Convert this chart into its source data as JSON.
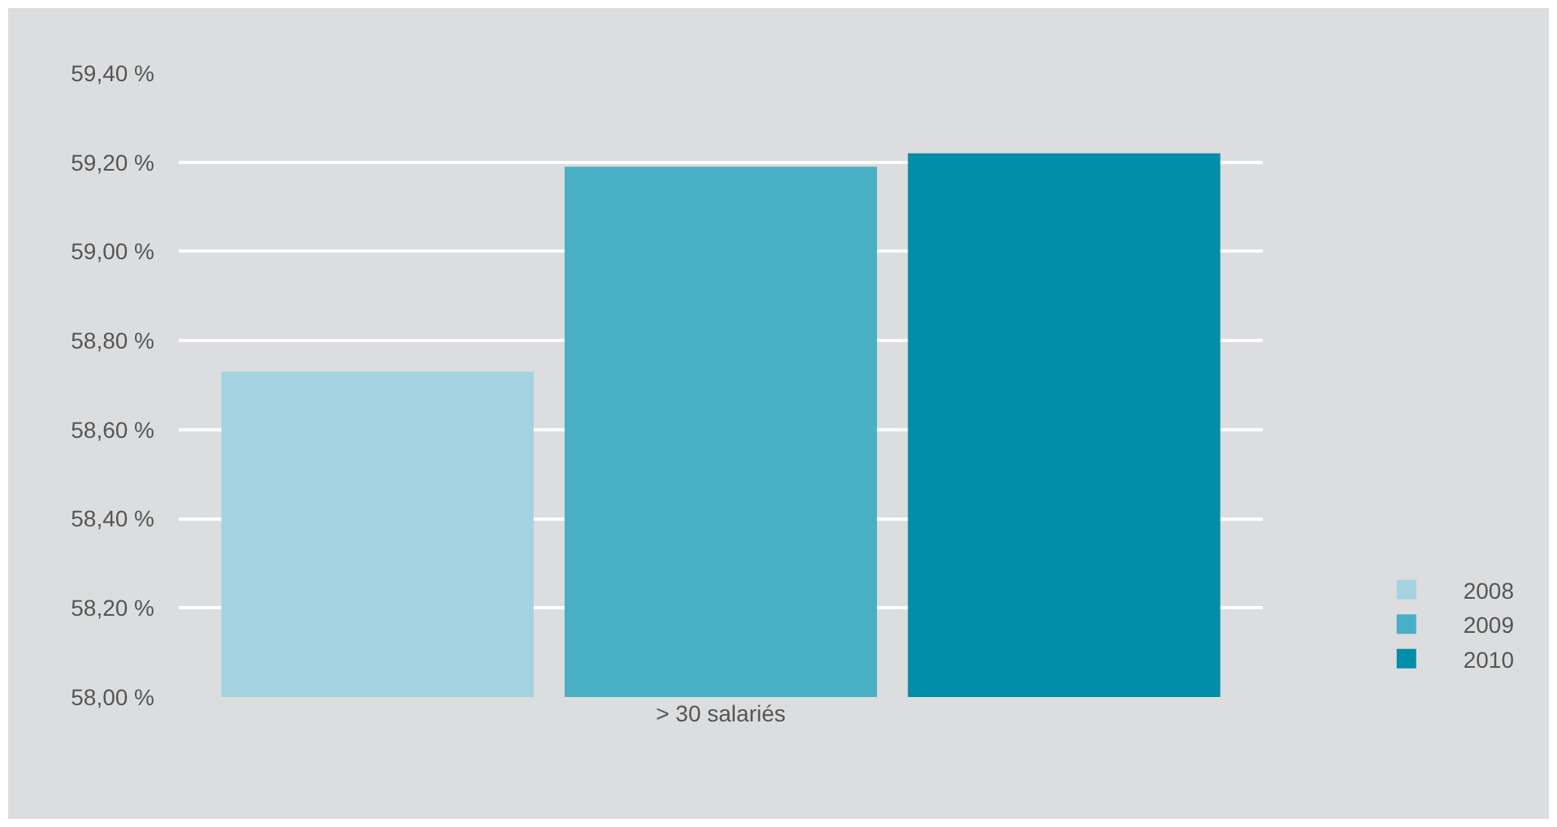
{
  "chart_data": {
    "type": "bar",
    "categories": [
      "> 30 salariés"
    ],
    "series": [
      {
        "name": "2008",
        "color": "#a3d3e0",
        "values": [
          58.73
        ]
      },
      {
        "name": "2009",
        "color": "#48afc5",
        "values": [
          59.19
        ]
      },
      {
        "name": "2010",
        "color": "#008ea8",
        "values": [
          59.22
        ]
      }
    ],
    "ylim": [
      58.0,
      59.4
    ],
    "yticks": [
      {
        "value": 58.0,
        "label": "58,00 %"
      },
      {
        "value": 58.2,
        "label": "58,20 %"
      },
      {
        "value": 58.4,
        "label": "58,40 %"
      },
      {
        "value": 58.6,
        "label": "58,60 %"
      },
      {
        "value": 58.8,
        "label": "58,80 %"
      },
      {
        "value": 59.0,
        "label": "59,00 %"
      },
      {
        "value": 59.2,
        "label": "59,20 %"
      },
      {
        "value": 59.4,
        "label": "59,40 %"
      }
    ],
    "grid": "y",
    "legend": "right"
  }
}
